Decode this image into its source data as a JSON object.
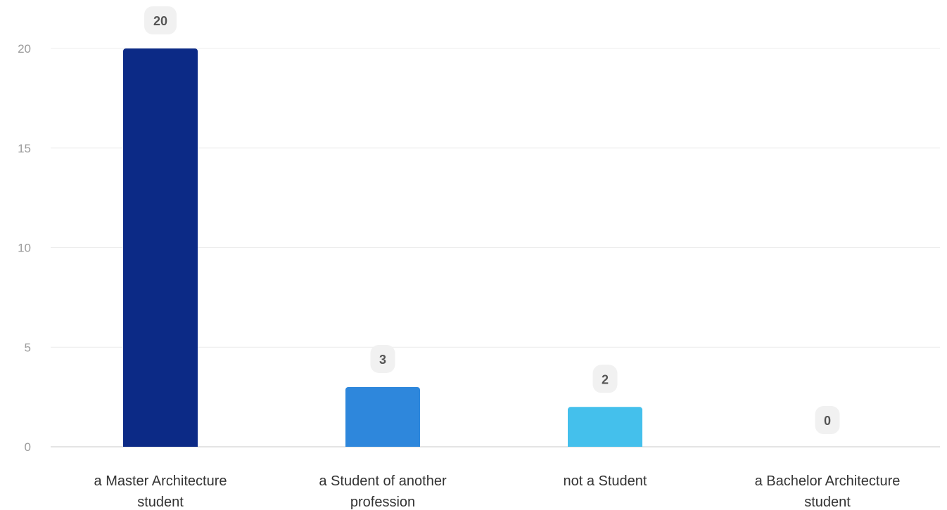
{
  "chart_data": {
    "type": "bar",
    "categories": [
      [
        "a Master Architecture",
        "student"
      ],
      [
        "a Student of another",
        "profession"
      ],
      [
        "not a Student"
      ],
      [
        "a Bachelor Architecture",
        "student"
      ]
    ],
    "values": [
      20,
      3,
      2,
      0
    ],
    "data_labels": [
      "20",
      "3",
      "2",
      "0"
    ],
    "colors": [
      "#0c2a86",
      "#2e87dc",
      "#44c0ec",
      "#e8e8e8"
    ],
    "ylim": [
      0,
      20
    ],
    "yticks": [
      0,
      5,
      10,
      15,
      20
    ],
    "grid": true,
    "title": "",
    "xlabel": "",
    "ylabel": ""
  }
}
